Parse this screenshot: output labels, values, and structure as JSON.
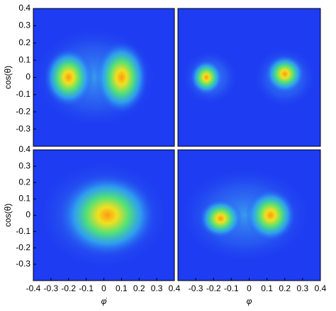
{
  "chart_data": [
    {
      "type": "heatmap",
      "ylabel": "cos(θ)",
      "xlim": [
        -0.4,
        0.4
      ],
      "ylim": [
        -0.4,
        0.4
      ],
      "yticks": [
        -0.3,
        -0.2,
        -0.1,
        0,
        0.1,
        0.2,
        0.3,
        0.4
      ]
    },
    {
      "type": "heatmap",
      "xlim": [
        -0.4,
        0.4
      ],
      "ylim": [
        -0.4,
        0.4
      ]
    },
    {
      "type": "heatmap",
      "ylabel": "cos(θ)",
      "xlabel": "φ̇",
      "xlim": [
        -0.4,
        0.4
      ],
      "ylim": [
        -0.4,
        0.4
      ],
      "yticks": [
        -0.3,
        -0.2,
        -0.1,
        0,
        0.1,
        0.2,
        0.3,
        0.4
      ],
      "xticks": [
        -0.4,
        -0.3,
        -0.2,
        -0.1,
        0,
        0.1,
        0.2,
        0.3,
        0.4
      ]
    },
    {
      "type": "heatmap",
      "xlabel": "φ",
      "xlim": [
        -0.4,
        0.4
      ],
      "ylim": [
        -0.4,
        0.4
      ],
      "xticks": [
        -0.3,
        -0.2,
        -0.1,
        0,
        0.1,
        0.2,
        0.3,
        0.4
      ]
    }
  ]
}
